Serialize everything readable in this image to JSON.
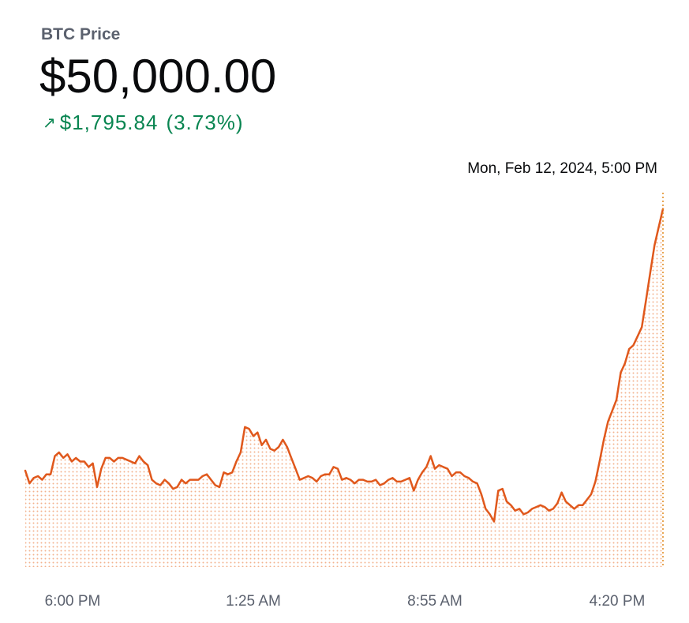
{
  "header": {
    "title": "BTC Price",
    "price": "$50,000.00",
    "change_arrow": "↗",
    "change_amount": "$1,795.84",
    "change_percent": "(3.73%)",
    "timestamp": "Mon, Feb 12, 2024, 5:00 PM"
  },
  "colors": {
    "line": "#e0581c",
    "positive": "#098551",
    "fill_dots": "#f2b38f",
    "crosshair": "#e0891c"
  },
  "chart_data": {
    "type": "line",
    "title": "BTC Price",
    "xlabel": "",
    "ylabel": "",
    "x_tick_labels": [
      "6:00 PM",
      "1:25 AM",
      "8:55 AM",
      "4:20 PM"
    ],
    "x_tick_positions": [
      0.04,
      0.35,
      0.67,
      0.955
    ],
    "ylim": [
      47980,
      50040
    ],
    "series": [
      {
        "name": "BTC Price",
        "values": [
          48510,
          48440,
          48470,
          48480,
          48460,
          48490,
          48490,
          48590,
          48610,
          48580,
          48600,
          48560,
          48580,
          48560,
          48560,
          48530,
          48550,
          48420,
          48520,
          48580,
          48580,
          48560,
          48580,
          48580,
          48570,
          48560,
          48550,
          48590,
          48560,
          48540,
          48460,
          48440,
          48430,
          48460,
          48440,
          48410,
          48420,
          48460,
          48440,
          48460,
          48460,
          48460,
          48480,
          48490,
          48460,
          48430,
          48420,
          48500,
          48490,
          48500,
          48560,
          48610,
          48750,
          48740,
          48700,
          48720,
          48650,
          48680,
          48630,
          48620,
          48640,
          48680,
          48640,
          48580,
          48520,
          48460,
          48470,
          48480,
          48470,
          48450,
          48480,
          48490,
          48490,
          48530,
          48520,
          48460,
          48470,
          48460,
          48440,
          48460,
          48460,
          48450,
          48450,
          48460,
          48430,
          48440,
          48460,
          48470,
          48450,
          48450,
          48460,
          48470,
          48400,
          48460,
          48500,
          48530,
          48590,
          48520,
          48540,
          48530,
          48520,
          48480,
          48500,
          48500,
          48480,
          48470,
          48450,
          48440,
          48380,
          48300,
          48270,
          48230,
          48400,
          48410,
          48340,
          48320,
          48290,
          48300,
          48270,
          48280,
          48300,
          48310,
          48320,
          48310,
          48290,
          48300,
          48330,
          48390,
          48340,
          48320,
          48300,
          48320,
          48320,
          48350,
          48380,
          48450,
          48560,
          48680,
          48780,
          48840,
          48900,
          49050,
          49100,
          49180,
          49200,
          49250,
          49300,
          49450,
          49600,
          49750,
          49850,
          49950
        ]
      }
    ]
  }
}
